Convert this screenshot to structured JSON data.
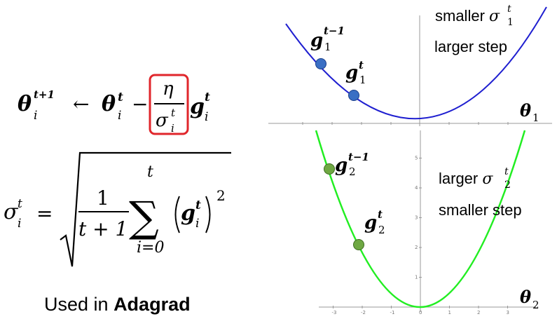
{
  "formula_update": {
    "theta_lhs": "θ",
    "theta_lhs_sub": "i",
    "theta_lhs_sup": "t+1",
    "arrow": "←",
    "theta_rhs": "θ",
    "theta_rhs_sub": "i",
    "theta_rhs_sup": "t",
    "minus": "−",
    "numerator": "η",
    "denominator": "σ",
    "denominator_sub": "i",
    "denominator_sup": "t",
    "g": "g",
    "g_sub": "i",
    "g_sup": "t",
    "highlight_color": "#e0262b"
  },
  "formula_sigma": {
    "sigma": "σ",
    "sigma_sub": "i",
    "sigma_sup": "t",
    "equals": "=",
    "frac_num": "1",
    "frac_den": "t + 1",
    "sum_symbol": "∑",
    "sum_upper": "t",
    "sum_lower": "i=0",
    "g": "g",
    "g_sub": "i",
    "g_sup": "t",
    "power": "2"
  },
  "caption": {
    "prefix": "Used in ",
    "method": "Adagrad"
  },
  "top_plot": {
    "curve_color": "#1f1fd0",
    "point_color": "#3a6fc4",
    "label_prev": "g",
    "label_prev_sub": "1",
    "label_prev_sup": "t−1",
    "label_curr": "g",
    "label_curr_sub": "1",
    "label_curr_sup": "t",
    "note_line1_prefix": "smaller ",
    "note_sigma": "σ",
    "note_sigma_sub": "1",
    "note_sigma_sup": "t",
    "note_line2": "larger step",
    "axis_label": "θ",
    "axis_label_sub": "1"
  },
  "bottom_plot": {
    "curve_color": "#22ee22",
    "point_color": "#6fa843",
    "label_prev": "g",
    "label_prev_sub": "2",
    "label_prev_sup": "t−1",
    "label_curr": "g",
    "label_curr_sub": "2",
    "label_curr_sup": "t",
    "note_line1_prefix": "larger ",
    "note_sigma": "σ",
    "note_sigma_sub": "2",
    "note_sigma_sup": "t",
    "note_line2": "smaller step",
    "axis_label": "θ",
    "axis_label_sub": "2",
    "x_ticks": [
      "-3",
      "-2",
      "-1",
      "0",
      "1",
      "2",
      "3"
    ],
    "y_ticks": [
      "1",
      "2",
      "3",
      "4",
      "5"
    ]
  }
}
